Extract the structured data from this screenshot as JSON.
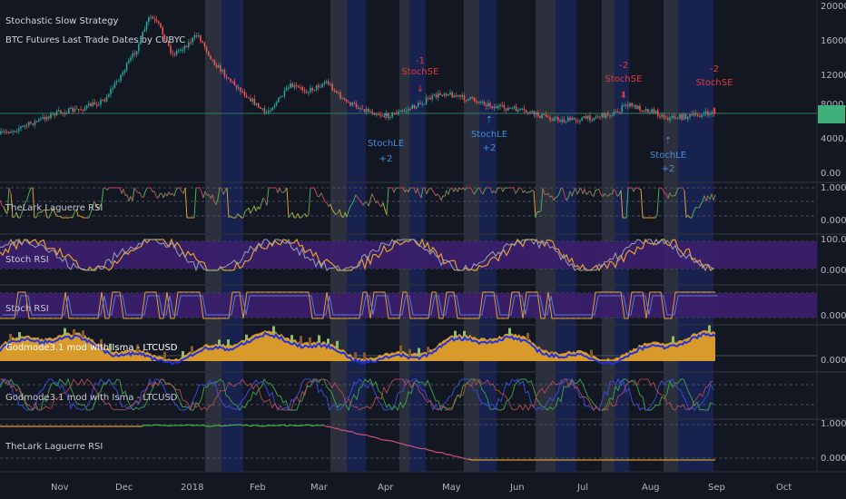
{
  "main_pane": {
    "title": "Stochastic Slow Strategy",
    "subtitle": "BTC Futures Last Trade Dates by CUBYC",
    "price_labels": [
      "20000.00",
      "16000.00",
      "12000.00",
      "8000.00",
      "4000.00",
      "0.00"
    ],
    "current_price_color": "#3fb07a",
    "signals": [
      {
        "kind": "long",
        "lines": [
          "StochLE",
          "+2"
        ],
        "color": "#3d8ee0"
      },
      {
        "kind": "short",
        "lines": [
          "-1",
          "StochSE"
        ],
        "color": "#e03b3b"
      },
      {
        "kind": "long",
        "lines": [
          "StochLE",
          "+2"
        ],
        "color": "#3d8ee0"
      },
      {
        "kind": "short",
        "lines": [
          "-2",
          "StochSE"
        ],
        "color": "#e03b3b"
      },
      {
        "kind": "long",
        "lines": [
          "StochLE",
          "+2"
        ],
        "color": "#3d8ee0"
      },
      {
        "kind": "short",
        "lines": [
          "-2",
          "StochSE"
        ],
        "color": "#e03b3b"
      }
    ]
  },
  "panes": [
    {
      "id": "laguerre1",
      "label": "TheLark Laguerre RSI",
      "scale": [
        "1.0000",
        "0.0000"
      ]
    },
    {
      "id": "stochrsi",
      "label": "Stoch RSI",
      "scale": [
        "100.0000",
        "0.0000"
      ]
    },
    {
      "id": "stochrsi2",
      "label": "Stoch RSI",
      "scale": [
        "0.0000"
      ]
    },
    {
      "id": "godmode1",
      "label": "Godmode3.1 mod with Isma - LTCUSD",
      "scale": [
        "0.0000"
      ]
    },
    {
      "id": "godmode2",
      "label": "Godmode3.1 mod with Isma - LTCUSD",
      "scale": []
    },
    {
      "id": "laguerre2",
      "label": "TheLark Laguerre RSI",
      "scale": [
        "1.0000",
        "0.0000"
      ]
    }
  ],
  "time_axis": [
    "Nov",
    "Dec",
    "2018",
    "Feb",
    "Mar",
    "Apr",
    "May",
    "Jun",
    "Jul",
    "Aug",
    "Sep",
    "Oct"
  ],
  "colors": {
    "background": "#131722",
    "up_candle": "#26a69a",
    "down_candle": "#ef5350",
    "blue_band": "#1a2456",
    "grey_band": "#363a45",
    "purple_fill": "#3c1f6e",
    "godmode_orange": "#d89a2b",
    "godmode_blue": "#2233dd",
    "laguerre_orange": "#e0a030",
    "laguerre_pink": "#d0507a"
  }
}
